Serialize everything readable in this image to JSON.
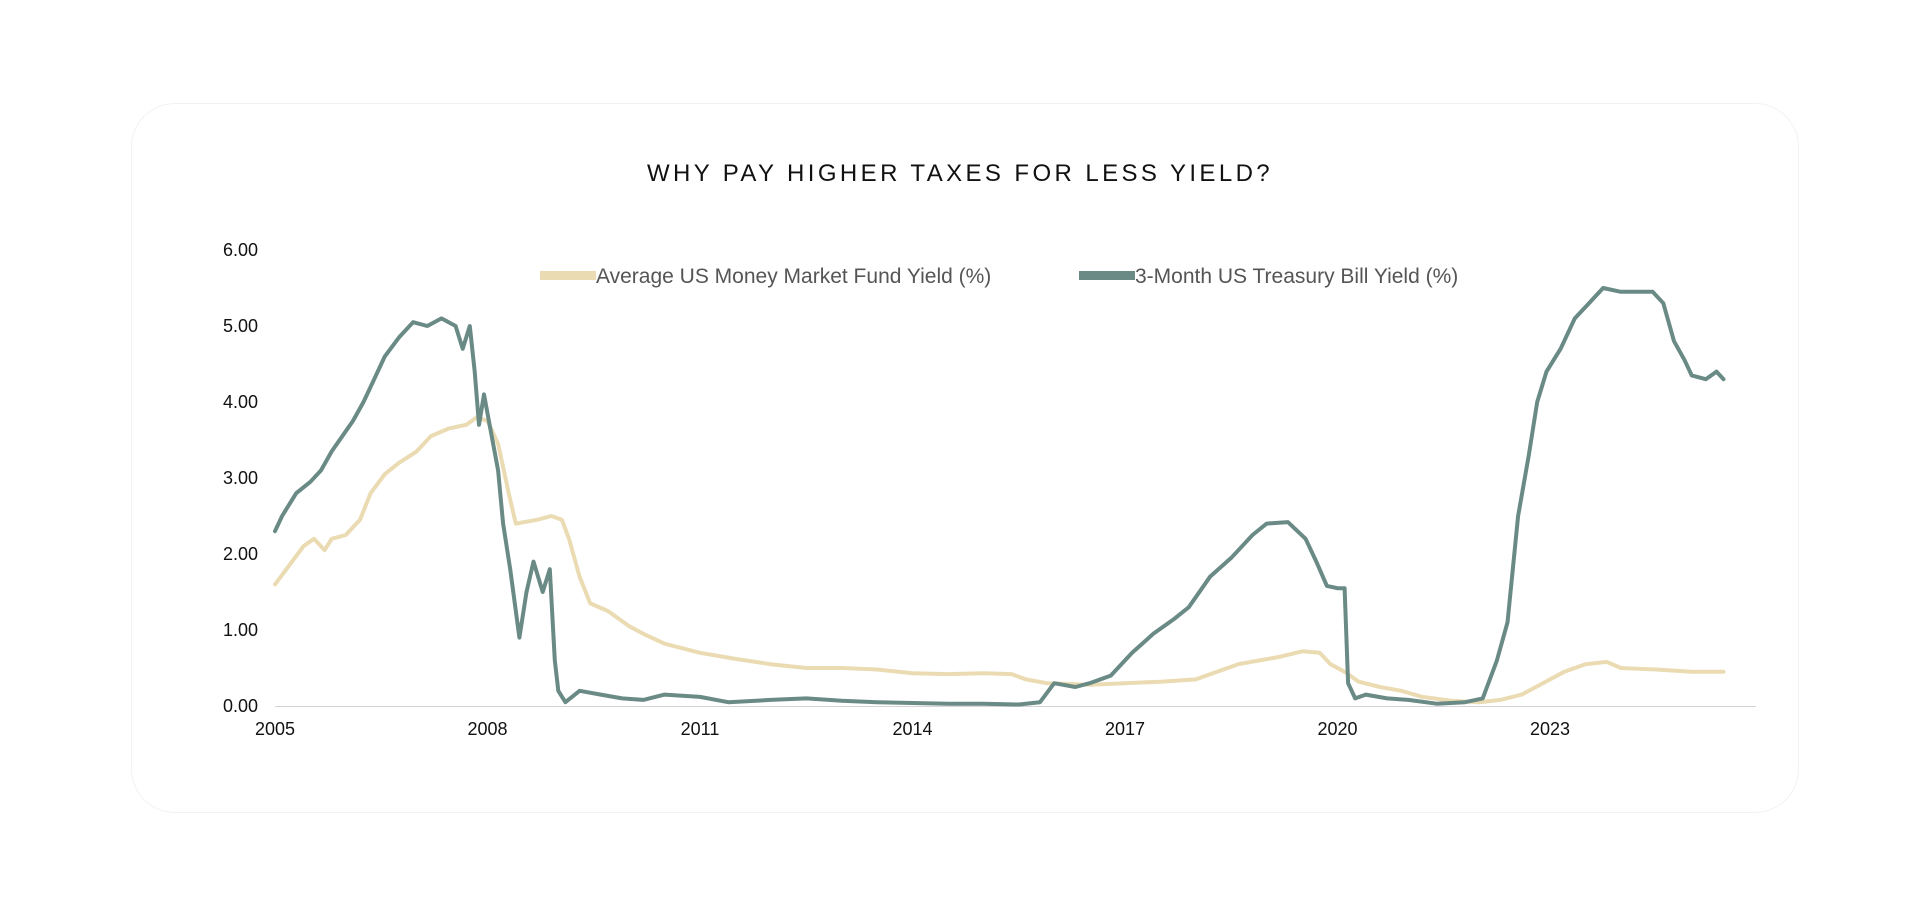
{
  "chart_data": {
    "type": "line",
    "title": "WHY PAY HIGHER TAXES FOR LESS YIELD?",
    "xlabel": "",
    "ylabel": "",
    "xlim": [
      2005,
      2025.6
    ],
    "ylim": [
      0,
      6
    ],
    "x_ticks": [
      "2005",
      "2008",
      "2011",
      "2014",
      "2017",
      "2020",
      "2023"
    ],
    "y_ticks": [
      "0.00",
      "1.00",
      "2.00",
      "3.00",
      "4.00",
      "5.00",
      "6.00"
    ],
    "legend_position": "top-center",
    "series": [
      {
        "name": "Average US Money Market Fund Yield (%)",
        "color": "#ebdbb2",
        "points": [
          [
            2005.0,
            1.6
          ],
          [
            2005.2,
            1.85
          ],
          [
            2005.4,
            2.1
          ],
          [
            2005.55,
            2.2
          ],
          [
            2005.7,
            2.05
          ],
          [
            2005.8,
            2.2
          ],
          [
            2006.0,
            2.25
          ],
          [
            2006.2,
            2.45
          ],
          [
            2006.35,
            2.8
          ],
          [
            2006.55,
            3.05
          ],
          [
            2006.75,
            3.2
          ],
          [
            2007.0,
            3.35
          ],
          [
            2007.2,
            3.55
          ],
          [
            2007.45,
            3.65
          ],
          [
            2007.7,
            3.7
          ],
          [
            2007.85,
            3.8
          ],
          [
            2008.0,
            3.75
          ],
          [
            2008.15,
            3.45
          ],
          [
            2008.3,
            2.8
          ],
          [
            2008.4,
            2.4
          ],
          [
            2008.7,
            2.45
          ],
          [
            2008.9,
            2.5
          ],
          [
            2009.05,
            2.45
          ],
          [
            2009.15,
            2.2
          ],
          [
            2009.3,
            1.7
          ],
          [
            2009.45,
            1.35
          ],
          [
            2009.7,
            1.25
          ],
          [
            2010.0,
            1.05
          ],
          [
            2010.2,
            0.95
          ],
          [
            2010.5,
            0.82
          ],
          [
            2011.0,
            0.7
          ],
          [
            2011.5,
            0.62
          ],
          [
            2012.0,
            0.55
          ],
          [
            2012.5,
            0.5
          ],
          [
            2013.0,
            0.5
          ],
          [
            2013.5,
            0.48
          ],
          [
            2014.0,
            0.43
          ],
          [
            2014.5,
            0.42
          ],
          [
            2015.0,
            0.43
          ],
          [
            2015.4,
            0.42
          ],
          [
            2015.6,
            0.35
          ],
          [
            2015.9,
            0.3
          ],
          [
            2016.5,
            0.28
          ],
          [
            2017.0,
            0.3
          ],
          [
            2017.5,
            0.32
          ],
          [
            2018.0,
            0.35
          ],
          [
            2018.3,
            0.45
          ],
          [
            2018.6,
            0.55
          ],
          [
            2018.9,
            0.6
          ],
          [
            2019.2,
            0.65
          ],
          [
            2019.5,
            0.72
          ],
          [
            2019.75,
            0.7
          ],
          [
            2019.9,
            0.55
          ],
          [
            2020.1,
            0.45
          ],
          [
            2020.3,
            0.32
          ],
          [
            2020.6,
            0.25
          ],
          [
            2020.9,
            0.2
          ],
          [
            2021.2,
            0.12
          ],
          [
            2021.6,
            0.07
          ],
          [
            2022.0,
            0.05
          ],
          [
            2022.3,
            0.08
          ],
          [
            2022.6,
            0.15
          ],
          [
            2022.9,
            0.3
          ],
          [
            2023.2,
            0.45
          ],
          [
            2023.5,
            0.55
          ],
          [
            2023.8,
            0.58
          ],
          [
            2024.0,
            0.5
          ],
          [
            2024.5,
            0.48
          ],
          [
            2025.0,
            0.45
          ],
          [
            2025.45,
            0.45
          ]
        ]
      },
      {
        "name": "3-Month US Treasury Bill Yield (%)",
        "color": "#6a8a86",
        "points": [
          [
            2005.0,
            2.3
          ],
          [
            2005.1,
            2.5
          ],
          [
            2005.3,
            2.8
          ],
          [
            2005.5,
            2.95
          ],
          [
            2005.65,
            3.1
          ],
          [
            2005.8,
            3.35
          ],
          [
            2005.95,
            3.55
          ],
          [
            2006.1,
            3.75
          ],
          [
            2006.25,
            4.0
          ],
          [
            2006.4,
            4.3
          ],
          [
            2006.55,
            4.6
          ],
          [
            2006.75,
            4.85
          ],
          [
            2006.95,
            5.05
          ],
          [
            2007.15,
            5.0
          ],
          [
            2007.35,
            5.1
          ],
          [
            2007.55,
            5.0
          ],
          [
            2007.65,
            4.7
          ],
          [
            2007.75,
            5.0
          ],
          [
            2007.82,
            4.4
          ],
          [
            2007.88,
            3.7
          ],
          [
            2007.95,
            4.1
          ],
          [
            2008.05,
            3.6
          ],
          [
            2008.15,
            3.1
          ],
          [
            2008.22,
            2.4
          ],
          [
            2008.32,
            1.8
          ],
          [
            2008.45,
            0.9
          ],
          [
            2008.55,
            1.5
          ],
          [
            2008.65,
            1.9
          ],
          [
            2008.78,
            1.5
          ],
          [
            2008.88,
            1.8
          ],
          [
            2008.95,
            0.6
          ],
          [
            2009.0,
            0.2
          ],
          [
            2009.1,
            0.05
          ],
          [
            2009.3,
            0.2
          ],
          [
            2009.6,
            0.15
          ],
          [
            2009.9,
            0.1
          ],
          [
            2010.2,
            0.08
          ],
          [
            2010.5,
            0.15
          ],
          [
            2011.0,
            0.12
          ],
          [
            2011.4,
            0.05
          ],
          [
            2012.0,
            0.08
          ],
          [
            2012.5,
            0.1
          ],
          [
            2013.0,
            0.07
          ],
          [
            2013.5,
            0.05
          ],
          [
            2014.0,
            0.04
          ],
          [
            2014.5,
            0.03
          ],
          [
            2015.0,
            0.03
          ],
          [
            2015.5,
            0.02
          ],
          [
            2015.8,
            0.05
          ],
          [
            2016.0,
            0.3
          ],
          [
            2016.3,
            0.25
          ],
          [
            2016.5,
            0.3
          ],
          [
            2016.8,
            0.4
          ],
          [
            2017.1,
            0.7
          ],
          [
            2017.4,
            0.95
          ],
          [
            2017.7,
            1.15
          ],
          [
            2017.9,
            1.3
          ],
          [
            2018.2,
            1.7
          ],
          [
            2018.5,
            1.95
          ],
          [
            2018.8,
            2.25
          ],
          [
            2019.0,
            2.4
          ],
          [
            2019.3,
            2.42
          ],
          [
            2019.55,
            2.2
          ],
          [
            2019.7,
            1.9
          ],
          [
            2019.85,
            1.58
          ],
          [
            2020.0,
            1.55
          ],
          [
            2020.1,
            1.55
          ],
          [
            2020.15,
            0.3
          ],
          [
            2020.25,
            0.1
          ],
          [
            2020.4,
            0.15
          ],
          [
            2020.7,
            0.1
          ],
          [
            2021.0,
            0.08
          ],
          [
            2021.4,
            0.03
          ],
          [
            2021.8,
            0.05
          ],
          [
            2022.05,
            0.1
          ],
          [
            2022.25,
            0.6
          ],
          [
            2022.4,
            1.1
          ],
          [
            2022.55,
            2.5
          ],
          [
            2022.7,
            3.3
          ],
          [
            2022.82,
            4.0
          ],
          [
            2022.95,
            4.4
          ],
          [
            2023.15,
            4.7
          ],
          [
            2023.35,
            5.1
          ],
          [
            2023.55,
            5.3
          ],
          [
            2023.75,
            5.5
          ],
          [
            2024.0,
            5.45
          ],
          [
            2024.25,
            5.45
          ],
          [
            2024.45,
            5.45
          ],
          [
            2024.6,
            5.3
          ],
          [
            2024.75,
            4.8
          ],
          [
            2024.9,
            4.55
          ],
          [
            2025.0,
            4.35
          ],
          [
            2025.2,
            4.3
          ],
          [
            2025.35,
            4.4
          ],
          [
            2025.45,
            4.3
          ]
        ]
      }
    ]
  }
}
